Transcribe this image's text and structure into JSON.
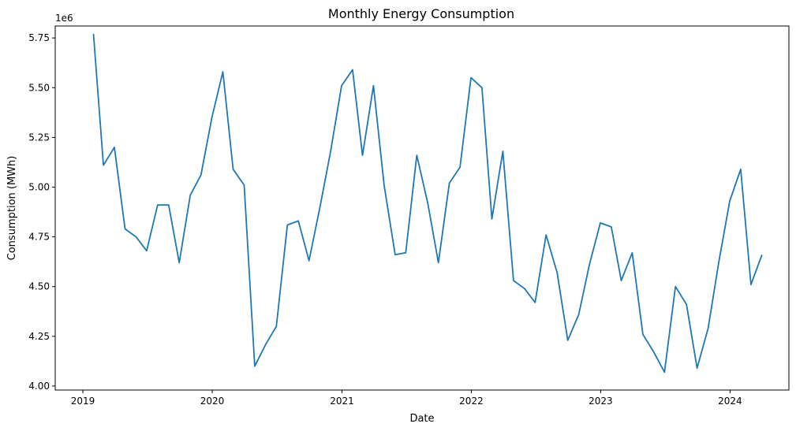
{
  "chart_data": {
    "type": "line",
    "title": "Monthly Energy Consumption",
    "xlabel": "Date",
    "ylabel": "Consumption (MWh)",
    "y_offset_label": "1e6",
    "xlim": [
      "2018-10-15",
      "2024-06-15"
    ],
    "ylim": [
      3.98,
      5.81
    ],
    "x_ticks": [
      "2019",
      "2020",
      "2021",
      "2022",
      "2023",
      "2024"
    ],
    "x_tick_values": [
      "2019-01-01",
      "2020-01-01",
      "2021-01-01",
      "2022-01-01",
      "2023-01-01",
      "2024-01-01"
    ],
    "y_ticks": [
      "4.00",
      "4.25",
      "4.50",
      "4.75",
      "5.00",
      "5.25",
      "5.50",
      "5.75"
    ],
    "y_tick_values": [
      4.0,
      4.25,
      4.5,
      4.75,
      5.0,
      5.25,
      5.5,
      5.75
    ],
    "grid": false,
    "color": "#1f77b4",
    "series": [
      {
        "x": [
          "2019-01-31",
          "2019-02-28",
          "2019-03-31",
          "2019-04-30",
          "2019-05-31",
          "2019-06-30",
          "2019-07-31",
          "2019-08-31",
          "2019-09-30",
          "2019-10-31",
          "2019-11-30",
          "2019-12-31",
          "2020-01-31",
          "2020-02-29",
          "2020-03-31",
          "2020-04-30",
          "2020-05-31",
          "2020-06-30",
          "2020-07-31",
          "2020-08-31",
          "2020-09-30",
          "2020-10-31",
          "2020-11-30",
          "2020-12-31",
          "2021-01-31",
          "2021-02-28",
          "2021-03-31",
          "2021-04-30",
          "2021-05-31",
          "2021-06-30",
          "2021-07-31",
          "2021-08-31",
          "2021-09-30",
          "2021-10-31",
          "2021-11-30",
          "2021-12-31",
          "2022-01-31",
          "2022-02-28",
          "2022-03-31",
          "2022-04-30",
          "2022-05-31",
          "2022-06-30",
          "2022-07-31",
          "2022-08-31",
          "2022-09-30",
          "2022-10-31",
          "2022-11-30",
          "2022-12-31",
          "2023-01-31",
          "2023-02-28",
          "2023-03-31",
          "2023-04-30",
          "2023-05-31",
          "2023-06-30",
          "2023-07-31",
          "2023-08-31",
          "2023-09-30",
          "2023-10-31",
          "2023-11-30",
          "2023-12-31",
          "2024-01-31",
          "2024-02-29",
          "2024-03-31"
        ],
        "values": [
          5.77,
          5.11,
          5.2,
          4.79,
          4.75,
          4.68,
          4.91,
          4.91,
          4.62,
          4.96,
          5.06,
          5.35,
          5.58,
          5.09,
          5.01,
          4.1,
          4.21,
          4.3,
          4.81,
          4.83,
          4.63,
          4.9,
          5.18,
          5.51,
          5.59,
          5.16,
          5.51,
          5.01,
          4.66,
          4.67,
          5.16,
          4.92,
          4.62,
          5.02,
          5.1,
          5.55,
          5.5,
          4.84,
          5.18,
          4.53,
          4.49,
          4.42,
          4.76,
          4.57,
          4.23,
          4.36,
          4.61,
          4.82,
          4.8,
          4.53,
          4.67,
          4.26,
          4.17,
          4.07,
          4.5,
          4.41,
          4.09,
          4.29,
          4.62,
          4.93,
          5.09,
          4.51,
          4.66
        ]
      }
    ]
  }
}
